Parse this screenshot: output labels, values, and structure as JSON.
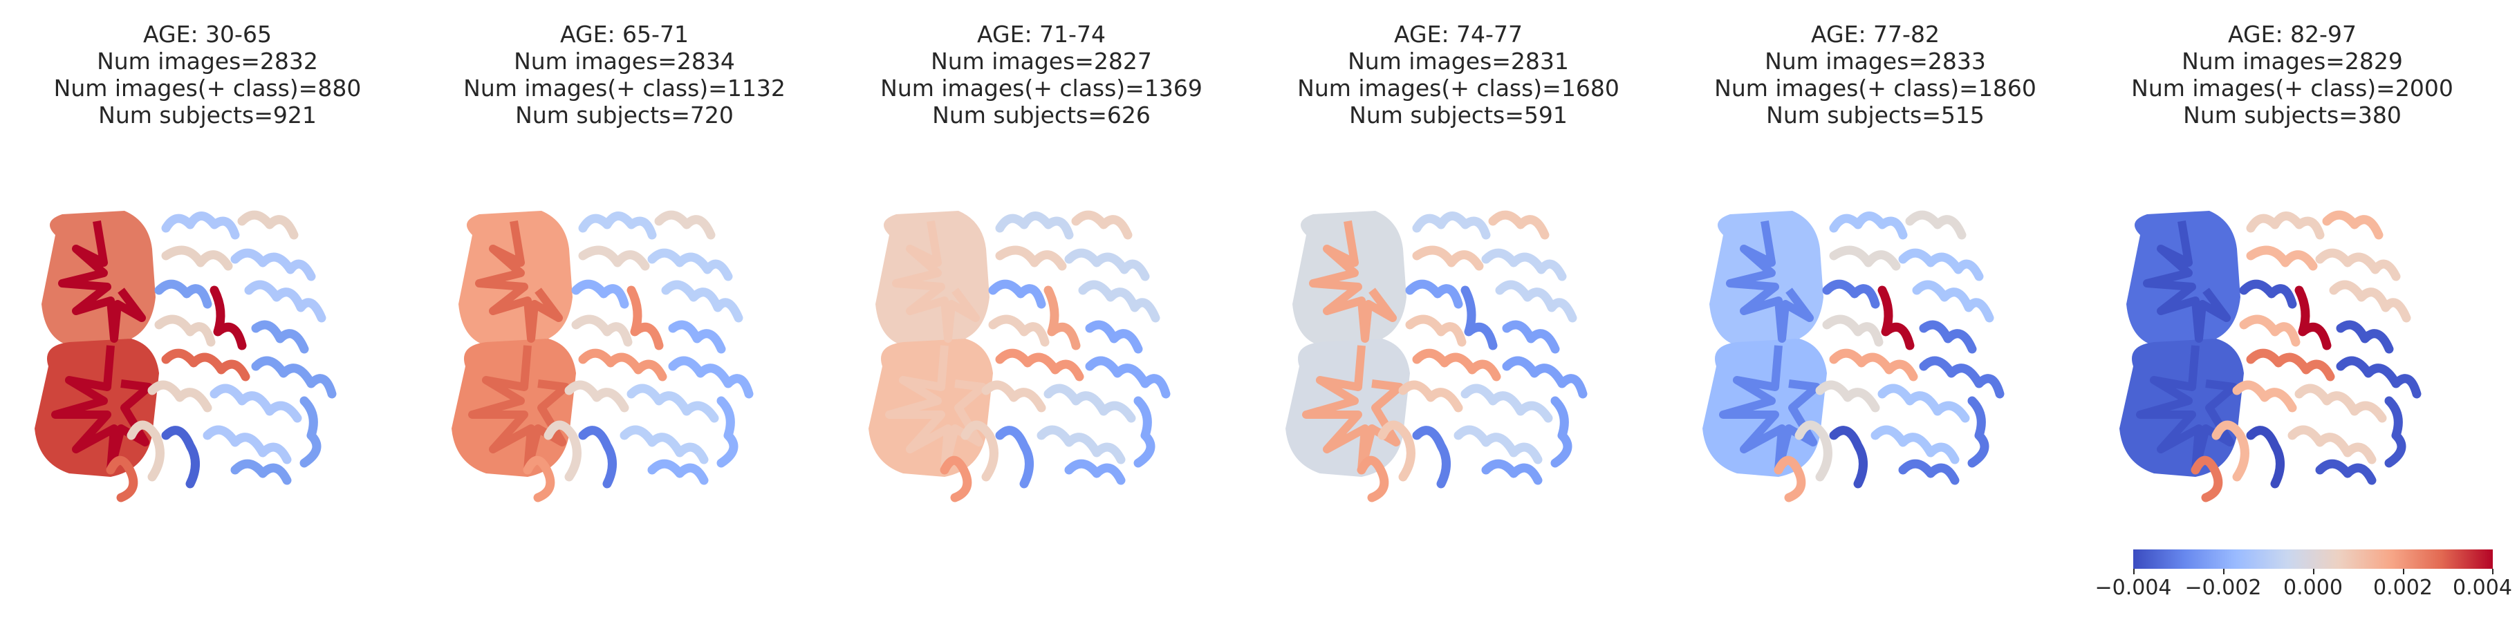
{
  "panels": [
    {
      "age": "AGE: 30-65",
      "num_images": "Num images=2832",
      "num_pos": "Num images(+ class)=880",
      "num_subjects": "Num subjects=921",
      "colors": {
        "cerebellum_upper": "#e27b63",
        "cerebellum_lower": "#cf453c",
        "cerebellum_core": "#b40426",
        "cortex_a": "#e8d2c5",
        "cortex_b": "#aec7fb",
        "cortex_c": "#7b9ff2",
        "cortex_d": "#e26952",
        "cortex_e": "#4a63d3",
        "deep": "#b40426"
      }
    },
    {
      "age": "AGE: 65-71",
      "num_images": "Num images=2834",
      "num_pos": "Num images(+ class)=1132",
      "num_subjects": "Num subjects=720",
      "colors": {
        "cerebellum_upper": "#f4a284",
        "cerebellum_lower": "#ee8a6c",
        "cerebellum_core": "#e06a52",
        "cortex_a": "#e8d6cc",
        "cortex_b": "#b9d0f9",
        "cortex_c": "#8fb1fe",
        "cortex_d": "#f49a7b",
        "cortex_e": "#5b7ae5",
        "deep": "#f08b6e"
      }
    },
    {
      "age": "AGE: 71-74",
      "num_images": "Num images=2827",
      "num_pos": "Num images(+ class)=1369",
      "num_subjects": "Num subjects=626",
      "colors": {
        "cerebellum_upper": "#efcfbf",
        "cerebellum_lower": "#f5c0a7",
        "cerebellum_core": "#f2c8b4",
        "cortex_a": "#eed0c0",
        "cortex_b": "#c6d6f1",
        "cortex_c": "#85a8fc",
        "cortex_d": "#f4987a",
        "cortex_e": "#6f92f3",
        "deep": "#f3a284"
      }
    },
    {
      "age": "AGE: 74-77",
      "num_images": "Num images=2831",
      "num_pos": "Num images(+ class)=1680",
      "num_subjects": "Num subjects=591",
      "colors": {
        "cerebellum_upper": "#d7dce3",
        "cerebellum_lower": "#d5dbe5",
        "cerebellum_core": "#f4a688",
        "cortex_a": "#f2c9b4",
        "cortex_b": "#c3d5f4",
        "cortex_c": "#7da0f9",
        "cortex_d": "#f5a081",
        "cortex_e": "#5f7fe8",
        "deep": "#6384eb"
      }
    },
    {
      "age": "AGE: 77-82",
      "num_images": "Num images=2833",
      "num_pos": "Num images(+ class)=1860",
      "num_subjects": "Num subjects=515",
      "colors": {
        "cerebellum_upper": "#a5c3fe",
        "cerebellum_lower": "#9bbcff",
        "cerebellum_core": "#6485ec",
        "cortex_a": "#e1dad6",
        "cortex_b": "#a9c6fd",
        "cortex_c": "#5a78e4",
        "cortex_d": "#f7a98b",
        "cortex_e": "#3f53c6",
        "deep": "#b40426"
      }
    },
    {
      "age": "AGE: 82-97",
      "num_images": "Num images=2829",
      "num_pos": "Num images(+ class)=2000",
      "num_subjects": "Num subjects=380",
      "colors": {
        "cerebellum_upper": "#5470de",
        "cerebellum_lower": "#4a63d3",
        "cerebellum_core": "#3f53c6",
        "cortex_a": "#f7b89c",
        "cortex_b": "#eed0c0",
        "cortex_c": "#4358cb",
        "cortex_d": "#e97a5f",
        "cortex_e": "#3b4cc0",
        "deep": "#b40426"
      }
    }
  ],
  "colorbar": {
    "ticks": [
      "−0.004",
      "−0.002",
      "0.000",
      "0.002",
      "0.004"
    ],
    "min": -0.004,
    "max": 0.004
  }
}
